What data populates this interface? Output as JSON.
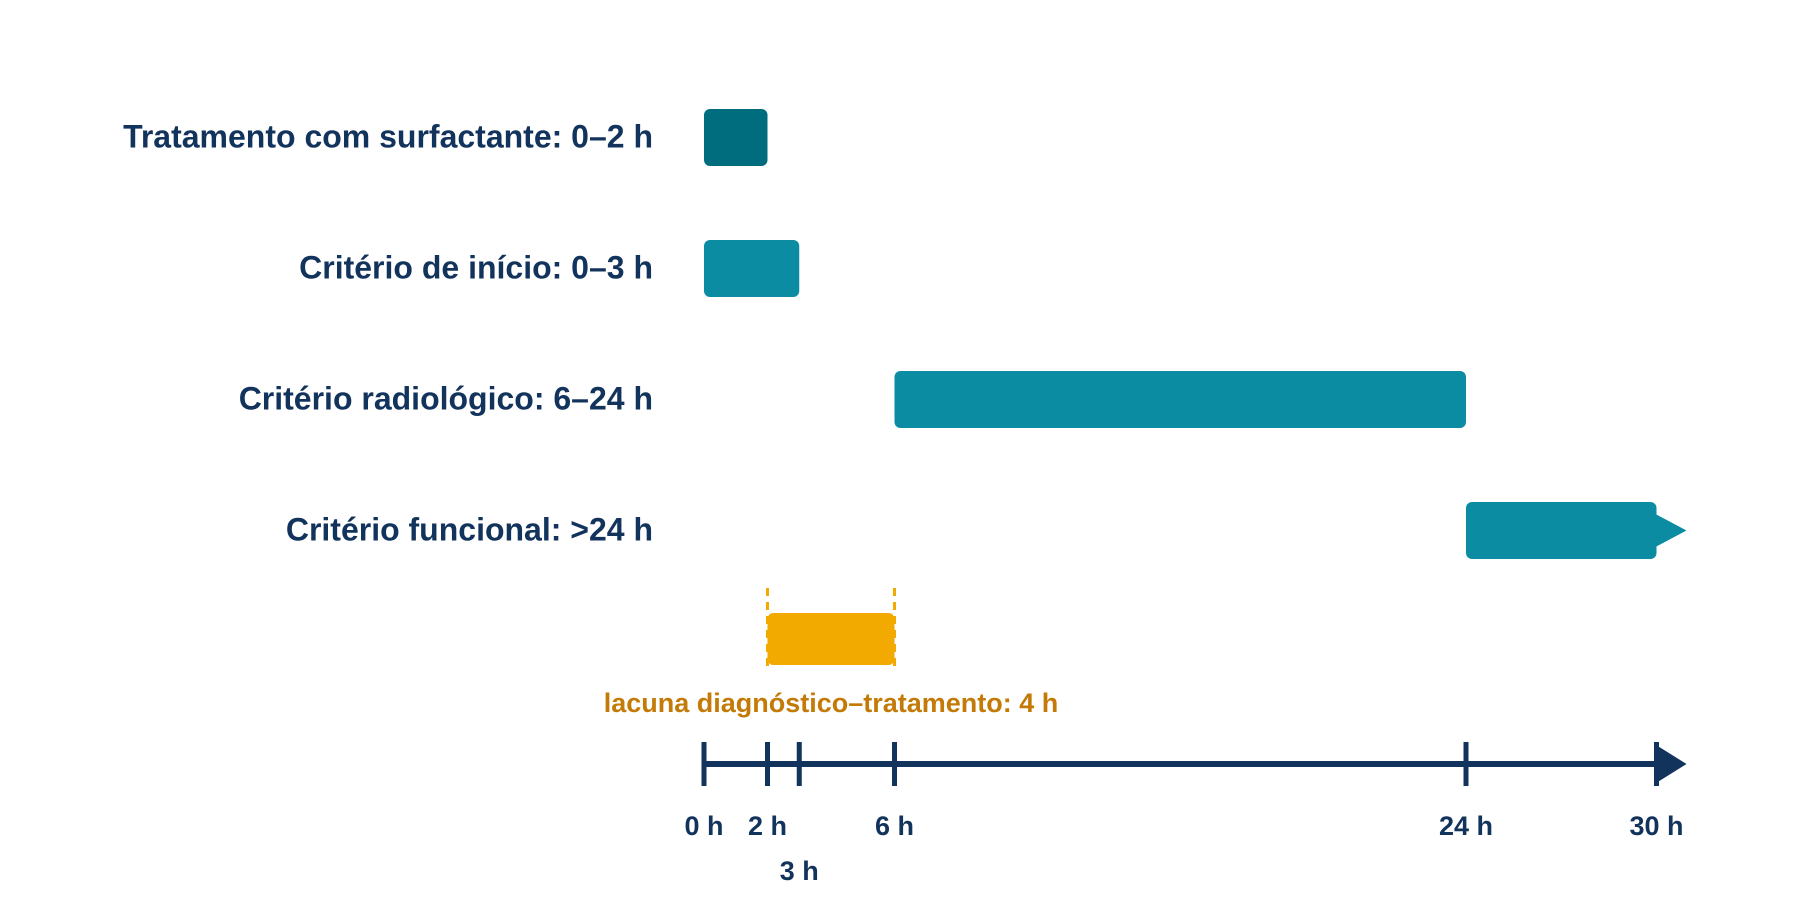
{
  "colors": {
    "dark_navy": "#12335c",
    "teal_dark": "#006d7e",
    "teal": "#0b8ca3",
    "gap_fill": "#f2a900",
    "gap_text": "#c47a06"
  },
  "timeline": {
    "unit": "h",
    "axis_start": 0,
    "axis_end": 30,
    "arrow": true,
    "ticks": [
      {
        "value": 0,
        "label": "0 h"
      },
      {
        "value": 2,
        "label": "2 h"
      },
      {
        "value": 3,
        "label": "3 h"
      },
      {
        "value": 6,
        "label": "6 h"
      },
      {
        "value": 24,
        "label": "24 h"
      },
      {
        "value": 30,
        "label": "30 h"
      }
    ]
  },
  "rows": [
    {
      "label": "Tratamento com surfactante: 0–2 h",
      "start": 0,
      "end": 2,
      "color": "#006d7e",
      "open_ended": false
    },
    {
      "label": "Critério de início: 0–3 h",
      "start": 0,
      "end": 3,
      "color": "#0b8ca3",
      "open_ended": false
    },
    {
      "label": "Critério radiológico: 6–24 h",
      "start": 6,
      "end": 24,
      "color": "#0b8ca3",
      "open_ended": false
    },
    {
      "label": "Critério funcional: >24 h",
      "start": 24,
      "end": 30,
      "color": "#0b8ca3",
      "open_ended": true
    }
  ],
  "gap": {
    "label": "lacuna diagnóstico–tratamento: 4 h",
    "start": 2,
    "end": 6,
    "color": "#f2a900"
  }
}
